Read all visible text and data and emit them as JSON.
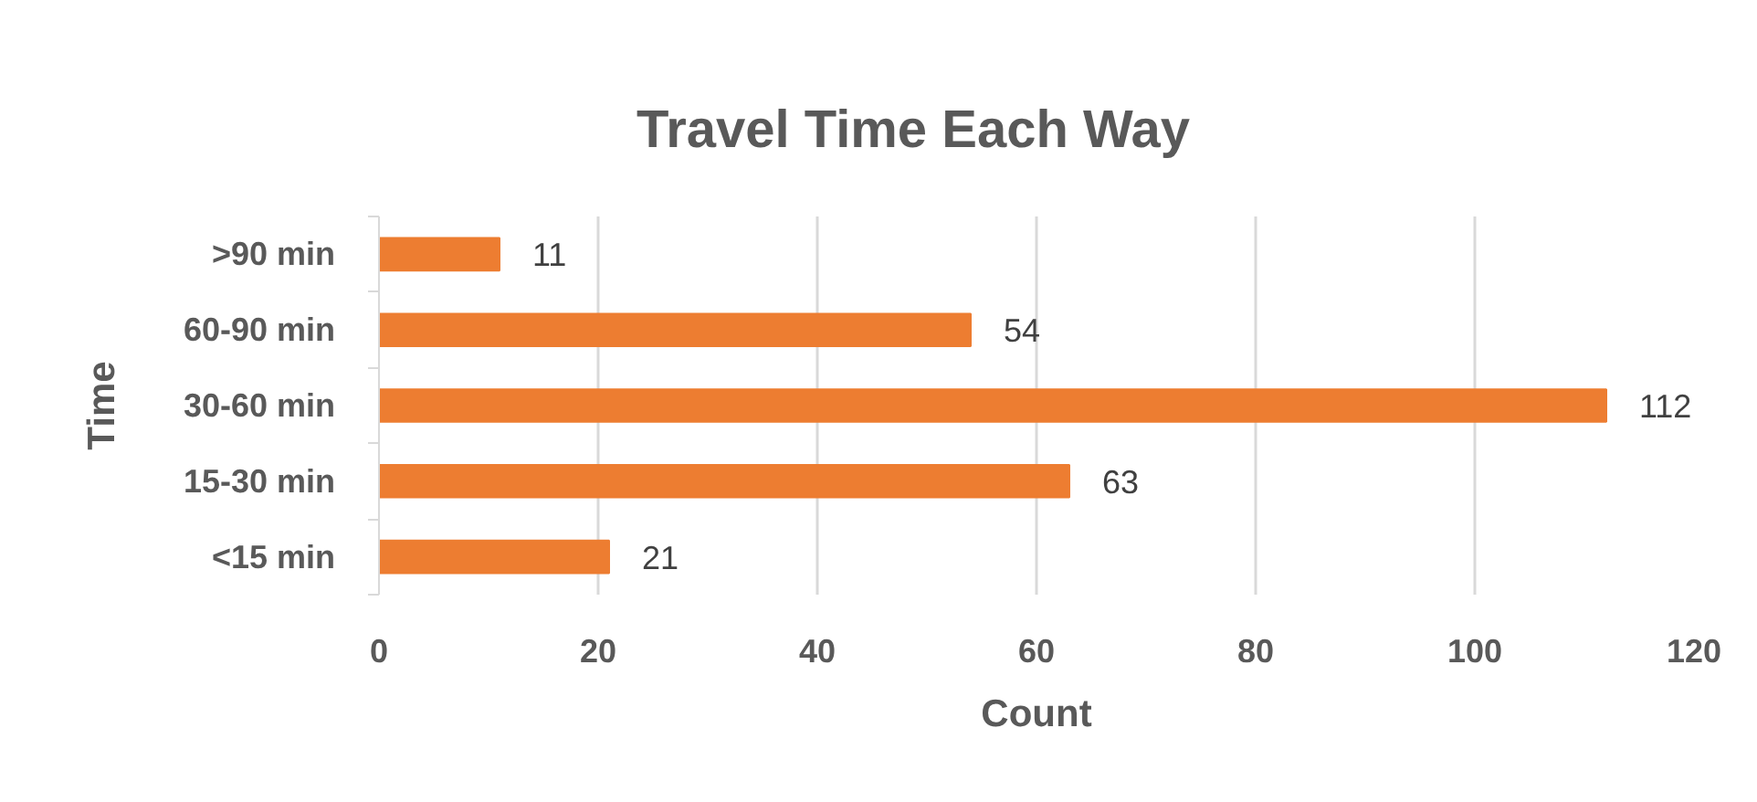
{
  "chart_data": {
    "type": "bar",
    "orientation": "horizontal",
    "title": "Travel Time Each Way",
    "xlabel": "Count",
    "ylabel": "Time",
    "categories": [
      ">90 min",
      "60-90 min",
      "30-60 min",
      "15-30 min",
      "<15 min"
    ],
    "values": [
      11,
      54,
      112,
      63,
      21
    ],
    "color": "#ed7d31",
    "xlim": [
      0,
      120
    ],
    "xticks": [
      0,
      20,
      40,
      60,
      80,
      100,
      120
    ],
    "grid": "x",
    "data_labels": true
  }
}
